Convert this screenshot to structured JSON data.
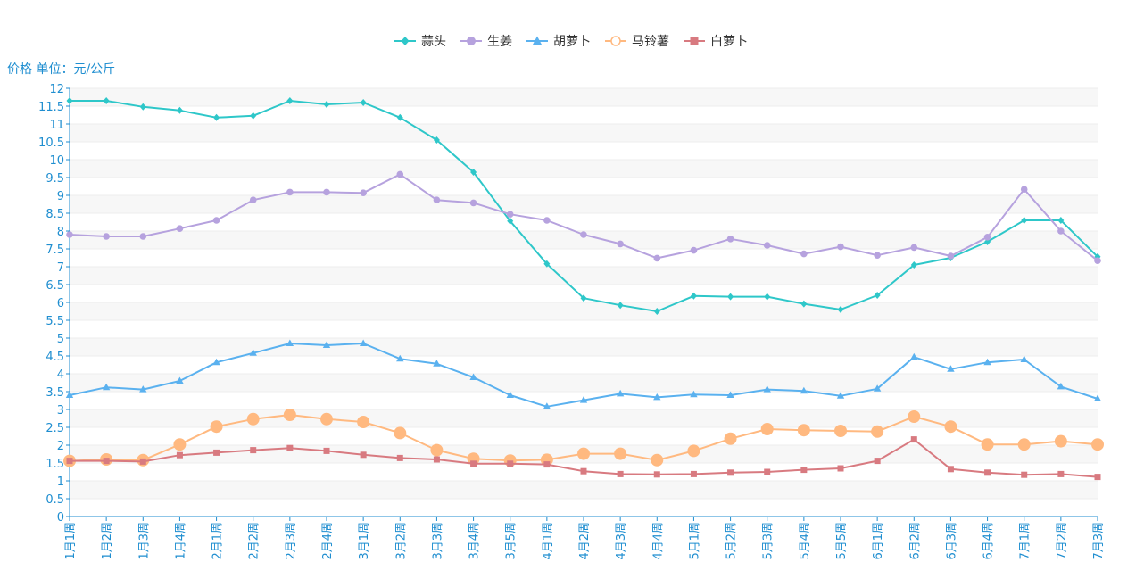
{
  "chart_data": {
    "type": "line",
    "ylabel": "价格 单位：元/公斤",
    "ylim": [
      0,
      12
    ],
    "yticks": [
      "0",
      "0.5",
      "1",
      "1.5",
      "2",
      "2.5",
      "3",
      "3.5",
      "4",
      "4.5",
      "5",
      "5.5",
      "6",
      "6.5",
      "7",
      "7.5",
      "8",
      "8.5",
      "9",
      "9.5",
      "10",
      "10.5",
      "11",
      "11.5",
      "12"
    ],
    "categories": [
      "1月1周",
      "1月2周",
      "1月3周",
      "1月4周",
      "2月1周",
      "2月2周",
      "2月3周",
      "2月4周",
      "3月1周",
      "3月2周",
      "3月3周",
      "3月4周",
      "3月5周",
      "4月1周",
      "4月2周",
      "4月3周",
      "4月4周",
      "5月1周",
      "5月2周",
      "5月3周",
      "5月4周",
      "5月5周",
      "6月1周",
      "6月2周",
      "6月3周",
      "6月4周",
      "7月1周",
      "7月2周",
      "7月3周"
    ],
    "series": [
      {
        "name": "蒜头",
        "color": "#2ec7c9",
        "marker": "diamond",
        "values": [
          11.65,
          11.65,
          11.48,
          11.38,
          11.18,
          11.23,
          11.65,
          11.55,
          11.6,
          11.18,
          10.55,
          9.65,
          8.28,
          7.08,
          6.12,
          5.92,
          5.75,
          6.18,
          6.16,
          6.16,
          5.96,
          5.8,
          6.2,
          7.05,
          7.25,
          7.7,
          8.3,
          8.3,
          7.28
        ]
      },
      {
        "name": "生姜",
        "color": "#b6a2de",
        "marker": "circle",
        "values": [
          7.9,
          7.85,
          7.85,
          8.07,
          8.3,
          8.87,
          9.09,
          9.09,
          9.07,
          9.59,
          8.87,
          8.79,
          8.47,
          8.3,
          7.9,
          7.64,
          7.24,
          7.46,
          7.78,
          7.6,
          7.36,
          7.56,
          7.32,
          7.54,
          7.3,
          7.83,
          9.17,
          8.0,
          7.17
        ]
      },
      {
        "name": "胡萝卜",
        "color": "#5ab1ef",
        "marker": "triangle",
        "values": [
          3.4,
          3.62,
          3.56,
          3.8,
          4.32,
          4.58,
          4.85,
          4.8,
          4.85,
          4.42,
          4.28,
          3.9,
          3.4,
          3.08,
          3.26,
          3.44,
          3.34,
          3.42,
          3.4,
          3.56,
          3.52,
          3.38,
          3.58,
          4.47,
          4.13,
          4.32,
          4.4,
          3.64,
          3.3
        ]
      },
      {
        "name": "马铃薯",
        "color": "#ffb980",
        "marker": "hollow-circle",
        "values": [
          1.56,
          1.6,
          1.58,
          2.02,
          2.52,
          2.73,
          2.85,
          2.73,
          2.65,
          2.34,
          1.86,
          1.62,
          1.57,
          1.59,
          1.76,
          1.76,
          1.58,
          1.84,
          2.18,
          2.45,
          2.42,
          2.4,
          2.38,
          2.8,
          2.52,
          2.02,
          2.02,
          2.11,
          2.02
        ]
      },
      {
        "name": "白萝卜",
        "color": "#d87a80",
        "marker": "square",
        "values": [
          1.56,
          1.56,
          1.54,
          1.72,
          1.79,
          1.86,
          1.92,
          1.84,
          1.73,
          1.64,
          1.6,
          1.48,
          1.48,
          1.46,
          1.27,
          1.19,
          1.18,
          1.19,
          1.23,
          1.25,
          1.31,
          1.35,
          1.56,
          2.16,
          1.33,
          1.23,
          1.17,
          1.19,
          1.11
        ]
      }
    ],
    "legend_position": "top-center",
    "grid": "horizontal-bands"
  }
}
